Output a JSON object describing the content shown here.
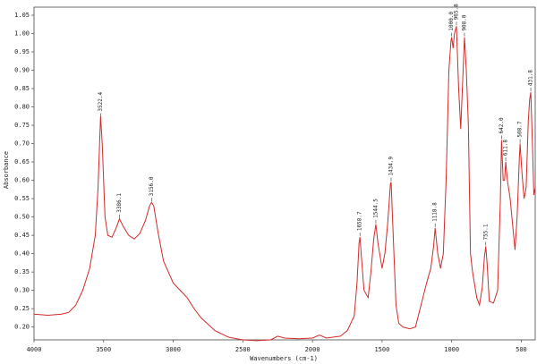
{
  "chart_data": {
    "type": "line",
    "xlabel": "Wavenumbers (cm-1)",
    "ylabel": "Absorbance",
    "color": "#d42a2a",
    "x": [
      4000,
      3900,
      3800,
      3750,
      3700,
      3650,
      3600,
      3560,
      3540,
      3522,
      3510,
      3490,
      3470,
      3440,
      3410,
      3386,
      3360,
      3320,
      3280,
      3240,
      3200,
      3170,
      3156,
      3140,
      3110,
      3070,
      3000,
      2950,
      2900,
      2850,
      2800,
      2700,
      2600,
      2500,
      2400,
      2300,
      2250,
      2200,
      2100,
      2000,
      1950,
      1900,
      1800,
      1750,
      1700,
      1680,
      1665,
      1658.7,
      1650,
      1630,
      1600,
      1580,
      1560,
      1544.5,
      1530,
      1500,
      1480,
      1460,
      1440,
      1434.9,
      1420,
      1400,
      1380,
      1350,
      1300,
      1260,
      1220,
      1180,
      1150,
      1130,
      1118.8,
      1100,
      1080,
      1060,
      1040,
      1020,
      1005,
      1000,
      990,
      980,
      965.8,
      950,
      935,
      920,
      908,
      895,
      880,
      865,
      850,
      820,
      800,
      780,
      765,
      755,
      745,
      730,
      700,
      670,
      650,
      642,
      630,
      620,
      611.8,
      600,
      580,
      560,
      545,
      530,
      515,
      508.7,
      495,
      480,
      465,
      450,
      440,
      431.8,
      420,
      410,
      400
    ],
    "values": [
      0.235,
      0.232,
      0.235,
      0.24,
      0.26,
      0.3,
      0.36,
      0.45,
      0.58,
      0.775,
      0.7,
      0.5,
      0.45,
      0.445,
      0.47,
      0.495,
      0.475,
      0.45,
      0.44,
      0.455,
      0.49,
      0.53,
      0.54,
      0.53,
      0.46,
      0.38,
      0.32,
      0.3,
      0.28,
      0.25,
      0.225,
      0.19,
      0.172,
      0.165,
      0.163,
      0.165,
      0.175,
      0.17,
      0.168,
      0.17,
      0.178,
      0.17,
      0.175,
      0.19,
      0.23,
      0.32,
      0.43,
      0.445,
      0.4,
      0.3,
      0.28,
      0.35,
      0.44,
      0.48,
      0.43,
      0.36,
      0.4,
      0.48,
      0.59,
      0.595,
      0.45,
      0.26,
      0.21,
      0.2,
      0.195,
      0.2,
      0.26,
      0.32,
      0.36,
      0.42,
      0.47,
      0.4,
      0.36,
      0.4,
      0.6,
      0.9,
      0.98,
      0.99,
      0.96,
      1.0,
      1.02,
      0.85,
      0.74,
      0.88,
      0.99,
      0.9,
      0.75,
      0.4,
      0.35,
      0.28,
      0.26,
      0.31,
      0.39,
      0.42,
      0.37,
      0.27,
      0.265,
      0.3,
      0.55,
      0.71,
      0.6,
      0.6,
      0.65,
      0.6,
      0.55,
      0.47,
      0.41,
      0.5,
      0.65,
      0.7,
      0.62,
      0.55,
      0.58,
      0.76,
      0.82,
      0.84,
      0.7,
      0.56,
      0.58
    ],
    "xlim": [
      4000,
      400
    ],
    "ylim": [
      0.165,
      1.072
    ],
    "xticks": [
      4000,
      3500,
      3000,
      2500,
      2000,
      1500,
      1000,
      500
    ],
    "yticks": [
      {
        "value": 0.2,
        "label": "0.20"
      },
      0.25,
      {
        "value": 0.3,
        "label": "0.30"
      },
      0.35,
      {
        "value": 0.4,
        "label": "0.40"
      },
      0.45,
      {
        "value": 0.5,
        "label": "0.50"
      },
      0.55,
      {
        "value": 0.6,
        "label": "0.60"
      },
      0.65,
      {
        "value": 0.7,
        "label": "0.70"
      },
      0.75,
      {
        "value": 0.8,
        "label": "0.80"
      },
      0.85,
      {
        "value": 0.9,
        "label": "0.90"
      },
      0.95,
      {
        "value": 1.0,
        "label": "1.00"
      },
      1.05
    ],
    "peaks": [
      3522.4,
      3386.1,
      {
        "value": 3156.0,
        "label": "3156.0"
      },
      1658.7,
      1544.5,
      1434.9,
      1118.8,
      {
        "value": 1000.0,
        "label": "1000.0"
      },
      965.8,
      {
        "value": 908.0,
        "label": "908.0"
      },
      755.1,
      {
        "value": 642.0,
        "label": "642.0"
      },
      611.8,
      508.7,
      431.8
    ]
  }
}
